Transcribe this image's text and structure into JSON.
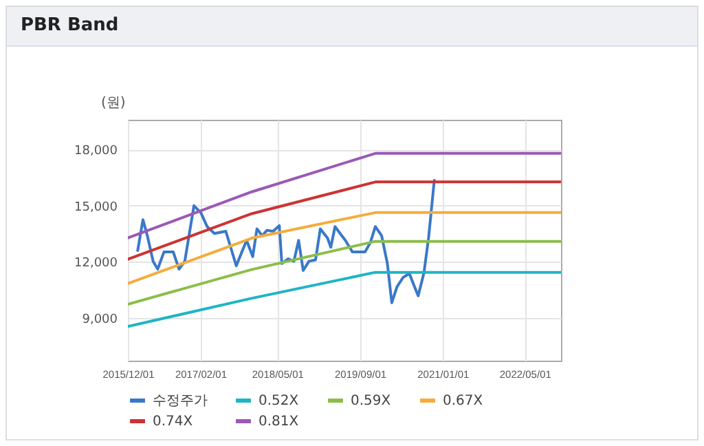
{
  "chart_data": {
    "type": "line",
    "title": "PBR Band",
    "ylabel": "(원)",
    "xlim": [
      "2015-12-01",
      "2022-12-01"
    ],
    "xticks": [
      {
        "value": "2015-12-01",
        "label": "2015/12/01"
      },
      {
        "value": "2017-02-01",
        "label": "2017/02/01"
      },
      {
        "value": "2018-05-01",
        "label": "2018/05/01"
      },
      {
        "value": "2019-09-01",
        "label": "2019/09/01"
      },
      {
        "value": "2021-01-01",
        "label": "2021/01/01"
      },
      {
        "value": "2022-05-01",
        "label": "2022/05/01"
      }
    ],
    "ylim": [
      6700,
      19600
    ],
    "yticks": [
      {
        "value": 9000,
        "label": "9,000"
      },
      {
        "value": 12000,
        "label": "12,000"
      },
      {
        "value": 15000,
        "label": "15,000"
      },
      {
        "value": 18000,
        "label": "18,000"
      }
    ],
    "grid": true,
    "legend": "bottom",
    "marker": "none",
    "line_style": "solid",
    "series": [
      {
        "name": "수정주가",
        "color": "#3a78c9",
        "x": [
          "2016-01-28",
          "2016-02-28",
          "2016-03-25",
          "2016-04-28",
          "2016-05-25",
          "2016-07-01",
          "2016-08-25",
          "2016-09-28",
          "2016-11-01",
          "2016-12-25",
          "2017-02-04",
          "2017-03-13",
          "2017-04-25",
          "2017-07-01",
          "2017-09-01",
          "2017-10-04",
          "2017-11-01",
          "2017-12-07",
          "2018-01-01",
          "2018-02-01",
          "2018-03-01",
          "2018-04-07",
          "2018-05-13",
          "2018-05-28",
          "2018-07-04",
          "2018-08-07",
          "2018-09-04",
          "2018-10-01",
          "2018-11-04",
          "2018-12-13",
          "2019-01-10",
          "2019-02-22",
          "2019-03-13",
          "2019-04-07",
          "2019-05-07",
          "2019-06-07",
          "2019-07-19",
          "2019-08-28",
          "2019-10-01",
          "2019-11-01",
          "2019-12-01",
          "2020-01-07",
          "2020-02-10",
          "2020-03-07",
          "2020-04-07",
          "2020-05-13",
          "2020-06-19",
          "2020-07-19",
          "2020-08-10",
          "2020-09-13",
          "2020-10-10",
          "2020-10-25",
          "2020-11-13"
        ],
        "values": [
          12600,
          14250,
          13390,
          12020,
          11600,
          12520,
          12520,
          11600,
          12020,
          15000,
          14620,
          13880,
          13510,
          13630,
          11780,
          12520,
          13140,
          12270,
          13760,
          13390,
          13680,
          13630,
          13930,
          11900,
          12150,
          12020,
          13140,
          11530,
          12020,
          12100,
          13760,
          13260,
          12770,
          13880,
          13510,
          13140,
          12520,
          12520,
          12520,
          13010,
          13880,
          13390,
          11900,
          9800,
          10660,
          11160,
          11360,
          10660,
          10170,
          11410,
          13260,
          14620,
          16360
        ]
      },
      {
        "name": "0.52X",
        "color": "#1fb5c4",
        "x": [
          "2015-12-01",
          "2017-12-01",
          "2019-12-01",
          "2022-12-01"
        ],
        "values": [
          8530,
          10040,
          11430,
          11430
        ]
      },
      {
        "name": "0.59X",
        "color": "#8cbd4a",
        "x": [
          "2015-12-01",
          "2017-12-01",
          "2019-12-01",
          "2022-12-01"
        ],
        "values": [
          9720,
          11580,
          13090,
          13090
        ]
      },
      {
        "name": "0.67X",
        "color": "#f5ac3c",
        "x": [
          "2015-12-01",
          "2017-12-01",
          "2019-12-01",
          "2022-12-01"
        ],
        "values": [
          10830,
          13260,
          14630,
          14630
        ]
      },
      {
        "name": "0.74X",
        "color": "#cc3333",
        "x": [
          "2015-12-01",
          "2017-12-01",
          "2019-12-01",
          "2022-12-01"
        ],
        "values": [
          12130,
          14570,
          16270,
          16270
        ]
      },
      {
        "name": "0.81X",
        "color": "#9b59b6",
        "x": [
          "2015-12-01",
          "2017-12-01",
          "2019-12-01",
          "2022-12-01"
        ],
        "values": [
          13270,
          15740,
          17800,
          17800
        ]
      }
    ]
  }
}
